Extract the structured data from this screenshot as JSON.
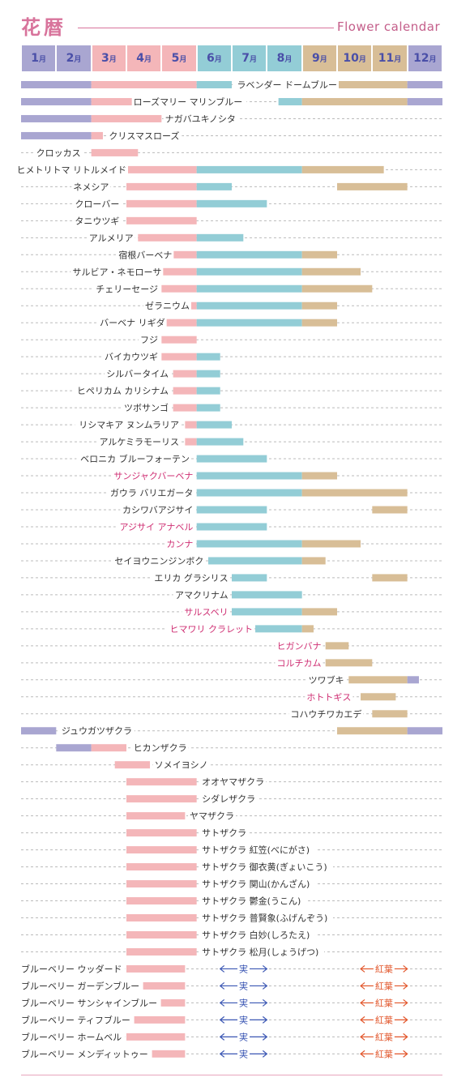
{
  "header": {
    "title": "花暦",
    "subtitle": "Flower calendar"
  },
  "colors": {
    "winter": "#a9a6d1",
    "flower": "#f4b6b9",
    "summer": "#93cdd6",
    "autumn": "#d8be97",
    "leader": "#bbbbbb",
    "label": "#333333",
    "label_accent": "#cf2f73",
    "arrow_blue": "#3a56b3",
    "arrow_orange": "#e2562b"
  },
  "months": [
    {
      "num": "1",
      "unit": "月",
      "season": "winter"
    },
    {
      "num": "2",
      "unit": "月",
      "season": "winter"
    },
    {
      "num": "3",
      "unit": "月",
      "season": "flower"
    },
    {
      "num": "4",
      "unit": "月",
      "season": "flower"
    },
    {
      "num": "5",
      "unit": "月",
      "season": "flower"
    },
    {
      "num": "6",
      "unit": "月",
      "season": "summer"
    },
    {
      "num": "7",
      "unit": "月",
      "season": "summer"
    },
    {
      "num": "8",
      "unit": "月",
      "season": "summer"
    },
    {
      "num": "9",
      "unit": "月",
      "season": "autumn"
    },
    {
      "num": "10",
      "unit": "月",
      "season": "autumn"
    },
    {
      "num": "11",
      "unit": "月",
      "season": "autumn"
    },
    {
      "num": "12",
      "unit": "月",
      "season": "winter"
    }
  ],
  "chart_data": {
    "type": "bar",
    "x_unit": "month (0 = start of January, 12 = end of December)",
    "xlim": [
      0,
      12
    ],
    "rows": [
      {
        "name": "ラベンダー ドームブルー",
        "label_at": 9.0,
        "align": "right",
        "segments": [
          [
            0,
            2,
            "winter"
          ],
          [
            2,
            5,
            "flower"
          ],
          [
            5,
            6,
            "summer"
          ],
          [
            9,
            11,
            "autumn"
          ],
          [
            11,
            12,
            "winter"
          ]
        ]
      },
      {
        "name": "ローズマリー マリンブルー",
        "label_at": 3.2,
        "align": "left",
        "segments": [
          [
            0,
            2,
            "winter"
          ],
          [
            2,
            3.33,
            "flower"
          ],
          [
            7.33,
            8,
            "summer"
          ],
          [
            8,
            11,
            "autumn"
          ],
          [
            11,
            12,
            "winter"
          ]
        ]
      },
      {
        "name": "ナガバユキノシタ",
        "label_at": 4.1,
        "align": "left",
        "segments": [
          [
            0,
            2,
            "winter"
          ],
          [
            2,
            4,
            "flower"
          ]
        ]
      },
      {
        "name": "クリスマスローズ",
        "label_at": 2.5,
        "align": "left",
        "segments": [
          [
            0,
            2,
            "winter"
          ],
          [
            2,
            2.33,
            "flower"
          ]
        ]
      },
      {
        "name": "クロッカス",
        "label_at": 1.7,
        "align": "right",
        "segments": [
          [
            2,
            3.33,
            "flower"
          ]
        ]
      },
      {
        "name": "ヒメトリトマ リトルメイド",
        "label_at": 3.0,
        "align": "right",
        "segments": [
          [
            3,
            5,
            "flower"
          ],
          [
            5,
            8,
            "summer"
          ],
          [
            8,
            10.33,
            "autumn"
          ]
        ]
      },
      {
        "name": "ネメシア",
        "label_at": 2.5,
        "align": "right",
        "segments": [
          [
            3,
            5,
            "flower"
          ],
          [
            5,
            6,
            "summer"
          ],
          [
            9,
            11,
            "autumn"
          ]
        ]
      },
      {
        "name": "クローバー",
        "label_at": 2.8,
        "align": "right",
        "segments": [
          [
            3,
            5,
            "flower"
          ],
          [
            5,
            7,
            "summer"
          ]
        ]
      },
      {
        "name": "タニウツギ",
        "label_at": 2.8,
        "align": "right",
        "segments": [
          [
            3,
            5,
            "flower"
          ]
        ]
      },
      {
        "name": "アルメリア",
        "label_at": 3.2,
        "align": "right",
        "segments": [
          [
            3.33,
            5,
            "flower"
          ],
          [
            5,
            6.33,
            "summer"
          ]
        ]
      },
      {
        "name": "宿根バーベナ",
        "label_at": 4.3,
        "align": "right",
        "segments": [
          [
            4,
            5,
            "flower"
          ],
          [
            5,
            8,
            "summer"
          ],
          [
            8,
            9,
            "autumn"
          ]
        ]
      },
      {
        "name": "サルビア・ネモローサ",
        "label_at": 4.0,
        "align": "right",
        "segments": [
          [
            4,
            5,
            "flower"
          ],
          [
            5,
            8,
            "summer"
          ],
          [
            8,
            9.67,
            "autumn"
          ]
        ]
      },
      {
        "name": "チェリーセージ",
        "label_at": 3.9,
        "align": "right",
        "segments": [
          [
            4,
            5,
            "flower"
          ],
          [
            5,
            8,
            "summer"
          ],
          [
            8,
            10,
            "autumn"
          ]
        ]
      },
      {
        "name": "ゼラニウム",
        "label_at": 4.8,
        "align": "right",
        "segments": [
          [
            4,
            5,
            "flower"
          ],
          [
            5,
            8,
            "summer"
          ],
          [
            8,
            9,
            "autumn"
          ]
        ]
      },
      {
        "name": "バーベナ リギダ",
        "label_at": 4.1,
        "align": "right",
        "segments": [
          [
            4,
            5,
            "flower"
          ],
          [
            5,
            8,
            "summer"
          ],
          [
            8,
            9,
            "autumn"
          ]
        ]
      },
      {
        "name": "フジ",
        "label_at": 3.9,
        "align": "right",
        "segments": [
          [
            4,
            5,
            "flower"
          ]
        ]
      },
      {
        "name": "バイカウツギ",
        "label_at": 3.9,
        "align": "right",
        "segments": [
          [
            4,
            5,
            "flower"
          ],
          [
            5,
            5.67,
            "summer"
          ]
        ]
      },
      {
        "name": "シルバータイム",
        "label_at": 4.2,
        "align": "right",
        "segments": [
          [
            4.33,
            5,
            "flower"
          ],
          [
            5,
            5.67,
            "summer"
          ]
        ]
      },
      {
        "name": "ヒペリカム カリシナム",
        "label_at": 4.2,
        "align": "right",
        "segments": [
          [
            4.33,
            5,
            "flower"
          ],
          [
            5,
            5.67,
            "summer"
          ]
        ]
      },
      {
        "name": "ツボサンゴ",
        "label_at": 4.2,
        "align": "right",
        "segments": [
          [
            4.33,
            5,
            "flower"
          ],
          [
            5,
            5.67,
            "summer"
          ]
        ]
      },
      {
        "name": "リシマキア ヌンムラリア",
        "label_at": 4.5,
        "align": "right",
        "segments": [
          [
            4.67,
            5,
            "flower"
          ],
          [
            5,
            6,
            "summer"
          ]
        ]
      },
      {
        "name": "アルケミラモーリス",
        "label_at": 4.5,
        "align": "right",
        "segments": [
          [
            4.67,
            5,
            "flower"
          ],
          [
            5,
            6.33,
            "summer"
          ]
        ]
      },
      {
        "name": "ベロニカ ブルーフォーテン",
        "label_at": 4.8,
        "align": "right",
        "segments": [
          [
            5,
            7,
            "summer"
          ]
        ]
      },
      {
        "name": "サンジャクバーベナ",
        "label_at": 4.9,
        "align": "right",
        "accent": true,
        "segments": [
          [
            5,
            8,
            "summer"
          ],
          [
            8,
            9,
            "autumn"
          ]
        ]
      },
      {
        "name": "ガウラ バリエガータ",
        "label_at": 4.9,
        "align": "right",
        "segments": [
          [
            5,
            8,
            "summer"
          ],
          [
            8,
            11,
            "autumn"
          ]
        ]
      },
      {
        "name": "カシワバアジサイ",
        "label_at": 4.9,
        "align": "right",
        "segments": [
          [
            5,
            7,
            "summer"
          ],
          [
            10,
            11,
            "autumn"
          ]
        ]
      },
      {
        "name": "アジサイ アナベル",
        "label_at": 4.9,
        "align": "right",
        "accent": true,
        "segments": [
          [
            5,
            7,
            "summer"
          ]
        ]
      },
      {
        "name": "カンナ",
        "label_at": 4.9,
        "align": "right",
        "accent": true,
        "segments": [
          [
            5,
            8,
            "summer"
          ],
          [
            8,
            9.67,
            "autumn"
          ]
        ]
      },
      {
        "name": "セイヨウニンジンボク",
        "label_at": 5.2,
        "align": "right",
        "segments": [
          [
            5.33,
            8,
            "summer"
          ],
          [
            8,
            8.67,
            "autumn"
          ]
        ]
      },
      {
        "name": "エリカ グラシリス",
        "label_at": 5.9,
        "align": "right",
        "segments": [
          [
            6,
            7,
            "summer"
          ],
          [
            10,
            11,
            "autumn"
          ]
        ]
      },
      {
        "name": "アマクリナム",
        "label_at": 5.9,
        "align": "right",
        "segments": [
          [
            6,
            8,
            "summer"
          ]
        ]
      },
      {
        "name": "サルスベリ",
        "label_at": 5.9,
        "align": "right",
        "accent": true,
        "segments": [
          [
            6,
            8,
            "summer"
          ],
          [
            8,
            9,
            "autumn"
          ]
        ]
      },
      {
        "name": "ヒマワリ クラレット",
        "label_at": 6.6,
        "align": "right",
        "accent": true,
        "segments": [
          [
            6.67,
            8,
            "summer"
          ],
          [
            8,
            8.33,
            "autumn"
          ]
        ]
      },
      {
        "name": "ヒガンバナ",
        "label_at": 8.55,
        "align": "right",
        "accent": true,
        "segments": [
          [
            8.67,
            9.33,
            "autumn"
          ]
        ]
      },
      {
        "name": "コルチカム",
        "label_at": 8.55,
        "align": "right",
        "accent": true,
        "segments": [
          [
            8.67,
            10,
            "autumn"
          ]
        ]
      },
      {
        "name": "ツワブキ",
        "label_at": 9.2,
        "align": "right",
        "segments": [
          [
            9.33,
            11,
            "autumn"
          ],
          [
            11,
            11.33,
            "winter"
          ]
        ]
      },
      {
        "name": "ホトトギス",
        "label_at": 9.4,
        "align": "right",
        "accent": true,
        "segments": [
          [
            9.67,
            10.67,
            "autumn"
          ]
        ]
      },
      {
        "name": "コハウチワカエデ",
        "label_at": 9.7,
        "align": "right",
        "segments": [
          [
            10,
            11,
            "autumn"
          ]
        ]
      },
      {
        "name": "ジュウガツザクラ",
        "label_at": 1.15,
        "align": "left",
        "segments": [
          [
            0,
            1,
            "winter"
          ],
          [
            9,
            11,
            "autumn"
          ],
          [
            11,
            12,
            "winter"
          ]
        ]
      },
      {
        "name": "ヒカンザクラ",
        "label_at": 3.2,
        "align": "left",
        "segments": [
          [
            1,
            2,
            "winter"
          ],
          [
            2,
            3,
            "flower"
          ]
        ]
      },
      {
        "name": "ソメイヨシノ",
        "label_at": 3.8,
        "align": "left",
        "segments": [
          [
            2.67,
            3.67,
            "flower"
          ]
        ]
      },
      {
        "name": "オオヤマザクラ",
        "label_at": 5.15,
        "align": "left",
        "segments": [
          [
            3,
            5,
            "flower"
          ]
        ]
      },
      {
        "name": "シダレザクラ",
        "label_at": 5.15,
        "align": "left",
        "segments": [
          [
            3,
            5,
            "flower"
          ]
        ]
      },
      {
        "name": "ヤマザクラ",
        "label_at": 4.8,
        "align": "left",
        "segments": [
          [
            3,
            4.67,
            "flower"
          ]
        ]
      },
      {
        "name": "サトザクラ",
        "label_at": 5.15,
        "align": "left",
        "segments": [
          [
            3,
            5,
            "flower"
          ]
        ]
      },
      {
        "name": "サトザクラ 紅笠(べにがさ)",
        "label_at": 5.15,
        "align": "left",
        "segments": [
          [
            3,
            5,
            "flower"
          ]
        ]
      },
      {
        "name": "サトザクラ 御衣黄(ぎょいこう)",
        "label_at": 5.15,
        "align": "left",
        "segments": [
          [
            3,
            5,
            "flower"
          ]
        ]
      },
      {
        "name": "サトザクラ 関山(かんざん)",
        "label_at": 5.15,
        "align": "left",
        "segments": [
          [
            3,
            5,
            "flower"
          ]
        ]
      },
      {
        "name": "サトザクラ 鬱金(うこん)",
        "label_at": 5.15,
        "align": "left",
        "segments": [
          [
            3,
            5,
            "flower"
          ]
        ]
      },
      {
        "name": "サトザクラ 普賢象(ふげんぞう)",
        "label_at": 5.15,
        "align": "left",
        "segments": [
          [
            3,
            5,
            "flower"
          ]
        ]
      },
      {
        "name": "サトザクラ 白妙(しろたえ)",
        "label_at": 5.15,
        "align": "left",
        "segments": [
          [
            3,
            5,
            "flower"
          ]
        ]
      },
      {
        "name": "サトザクラ 松月(しょうげつ)",
        "label_at": 5.15,
        "align": "left",
        "segments": [
          [
            3,
            5,
            "flower"
          ]
        ]
      },
      {
        "name": "ブルーベリー ウッダード",
        "label_at": 0.0,
        "align": "left",
        "segments": [
          [
            3,
            4.67,
            "flower"
          ]
        ],
        "arrows": [
          {
            "text": "実",
            "from": 5.67,
            "to": 7.0,
            "color": "arrow_blue"
          },
          {
            "text": "紅葉",
            "from": 9.67,
            "to": 11.0,
            "color": "arrow_orange"
          }
        ]
      },
      {
        "name": "ブルーベリー ガーデンブルー",
        "label_at": 0.0,
        "align": "left",
        "segments": [
          [
            3,
            4.67,
            "flower"
          ]
        ],
        "arrows": [
          {
            "text": "実",
            "from": 5.67,
            "to": 7.0,
            "color": "arrow_blue"
          },
          {
            "text": "紅葉",
            "from": 9.67,
            "to": 11.0,
            "color": "arrow_orange"
          }
        ]
      },
      {
        "name": "ブルーベリー サンシャインブルー",
        "label_at": 0.0,
        "align": "left",
        "segments": [
          [
            3,
            4.67,
            "flower"
          ]
        ],
        "arrows": [
          {
            "text": "実",
            "from": 5.67,
            "to": 7.0,
            "color": "arrow_blue"
          },
          {
            "text": "紅葉",
            "from": 9.67,
            "to": 11.0,
            "color": "arrow_orange"
          }
        ]
      },
      {
        "name": "ブルーベリー ティフブルー",
        "label_at": 0.0,
        "align": "left",
        "segments": [
          [
            3,
            4.67,
            "flower"
          ]
        ],
        "arrows": [
          {
            "text": "実",
            "from": 5.67,
            "to": 7.0,
            "color": "arrow_blue"
          },
          {
            "text": "紅葉",
            "from": 9.67,
            "to": 11.0,
            "color": "arrow_orange"
          }
        ]
      },
      {
        "name": "ブルーベリー ホームベル",
        "label_at": 0.0,
        "align": "left",
        "segments": [
          [
            3,
            4.67,
            "flower"
          ]
        ],
        "arrows": [
          {
            "text": "実",
            "from": 5.67,
            "to": 7.0,
            "color": "arrow_blue"
          },
          {
            "text": "紅葉",
            "from": 9.67,
            "to": 11.0,
            "color": "arrow_orange"
          }
        ]
      },
      {
        "name": "ブルーベリー メンディットゥー",
        "label_at": 0.0,
        "align": "left",
        "segments": [
          [
            3,
            4.67,
            "flower"
          ]
        ],
        "arrows": [
          {
            "text": "実",
            "from": 5.67,
            "to": 7.0,
            "color": "arrow_blue"
          },
          {
            "text": "紅葉",
            "from": 9.67,
            "to": 11.0,
            "color": "arrow_orange"
          }
        ]
      }
    ]
  }
}
